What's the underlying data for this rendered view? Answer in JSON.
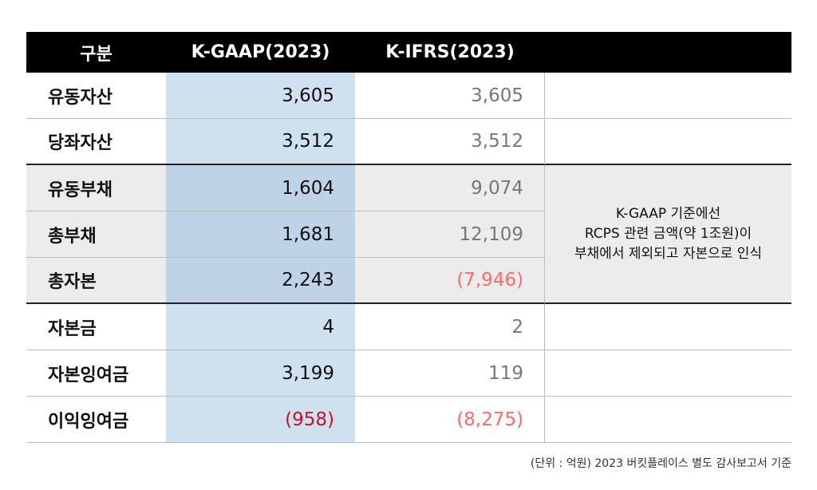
{
  "headers": [
    "구분",
    "K-GAAP(2023)",
    "K-IFRS(2023)",
    ""
  ],
  "rows": [
    {
      "label": "유동자산",
      "kgaap": "3,605",
      "kifrs": "3,605"
    },
    {
      "label": "당좌자산",
      "kgaap": "3,512",
      "kifrs": "3,512"
    },
    {
      "label": "유동부채",
      "kgaap": "1,604",
      "kifrs": "9,074"
    },
    {
      "label": "총부채",
      "kgaap": "1,681",
      "kifrs": "12,109"
    },
    {
      "label": "총자본",
      "kgaap": "2,243",
      "kifrs": "(7,946)"
    },
    {
      "label": "자본금",
      "kgaap": "4",
      "kifrs": "2"
    },
    {
      "label": "자본잉여금",
      "kgaap": "3,199",
      "kifrs": "119"
    },
    {
      "label": "이익잉여금",
      "kgaap": "(958)",
      "kifrs": "(8,275)"
    }
  ],
  "note_lines": [
    "K-GAAP 기준에선",
    "RCPS 관련 금액(약 1조원)이",
    "부채에서 제외되고 자본으로 인식"
  ],
  "footer": "(단위 : 억원) 2023 버킷플레이스 별도 감사보고서 기준",
  "colors": {
    "header_bg": "#000000",
    "kgaap_col": "#cfe1ef",
    "highlight_group": "#ececec",
    "negative_kgaap": "#c8102e",
    "negative_kifrs": "#ff6b6b"
  }
}
